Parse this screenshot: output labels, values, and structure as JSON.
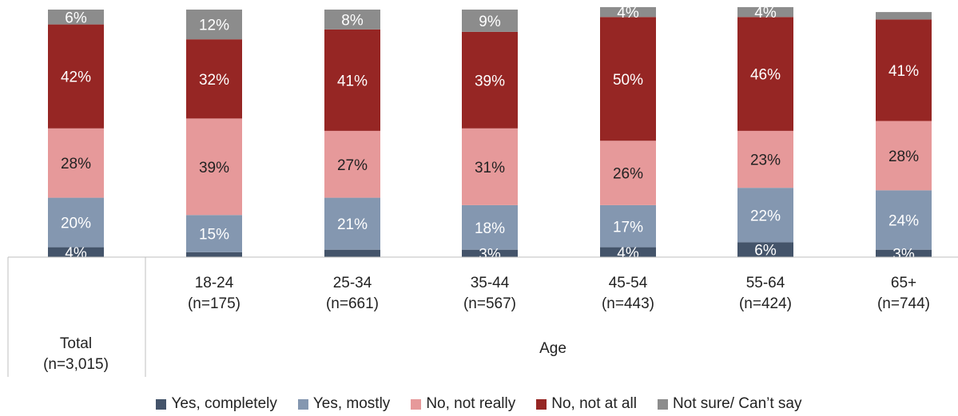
{
  "chart_data": {
    "type": "bar",
    "stacked": true,
    "percent_stacked": true,
    "categories": [
      {
        "group": "",
        "label": "Total",
        "n": "(n=3,015)"
      },
      {
        "group": "Age",
        "label": "18-24",
        "n": "(n=175)"
      },
      {
        "group": "Age",
        "label": "25-34",
        "n": "(n=661)"
      },
      {
        "group": "Age",
        "label": "35-44",
        "n": "(n=567)"
      },
      {
        "group": "Age",
        "label": "45-54",
        "n": "(n=443)"
      },
      {
        "group": "Age",
        "label": "55-64",
        "n": "(n=424)"
      },
      {
        "group": "Age",
        "label": "65+",
        "n": "(n=744)"
      }
    ],
    "group_label": "Age",
    "series": [
      {
        "name": "Yes, completely",
        "color": "#44546A",
        "values": [
          4,
          2,
          3,
          3,
          4,
          6,
          3
        ]
      },
      {
        "name": "Yes, mostly",
        "color": "#8497B0",
        "values": [
          20,
          15,
          21,
          18,
          17,
          22,
          24
        ]
      },
      {
        "name": "No, not really",
        "color": "#E6999A",
        "values": [
          28,
          39,
          27,
          31,
          26,
          23,
          28
        ]
      },
      {
        "name": "No, not at all",
        "color": "#962624",
        "values": [
          42,
          32,
          41,
          39,
          50,
          46,
          41
        ]
      },
      {
        "name": "Not sure/ Can’t say",
        "color": "#8C8C8C",
        "values": [
          6,
          12,
          8,
          9,
          4,
          4,
          3
        ]
      }
    ],
    "data_labels": [
      [
        "4%",
        "",
        "",
        "3%",
        "4%",
        "6%",
        "3%"
      ],
      [
        "20%",
        "15%",
        "21%",
        "18%",
        "17%",
        "22%",
        "24%"
      ],
      [
        "28%",
        "39%",
        "27%",
        "31%",
        "26%",
        "23%",
        "28%"
      ],
      [
        "42%",
        "32%",
        "41%",
        "39%",
        "50%",
        "46%",
        "41%"
      ],
      [
        "6%",
        "12%",
        "8%",
        "9%",
        "4%",
        "4%",
        ""
      ]
    ],
    "ylim": [
      0,
      100
    ],
    "legend_position": "bottom",
    "title": "",
    "xlabel": "",
    "ylabel": ""
  }
}
